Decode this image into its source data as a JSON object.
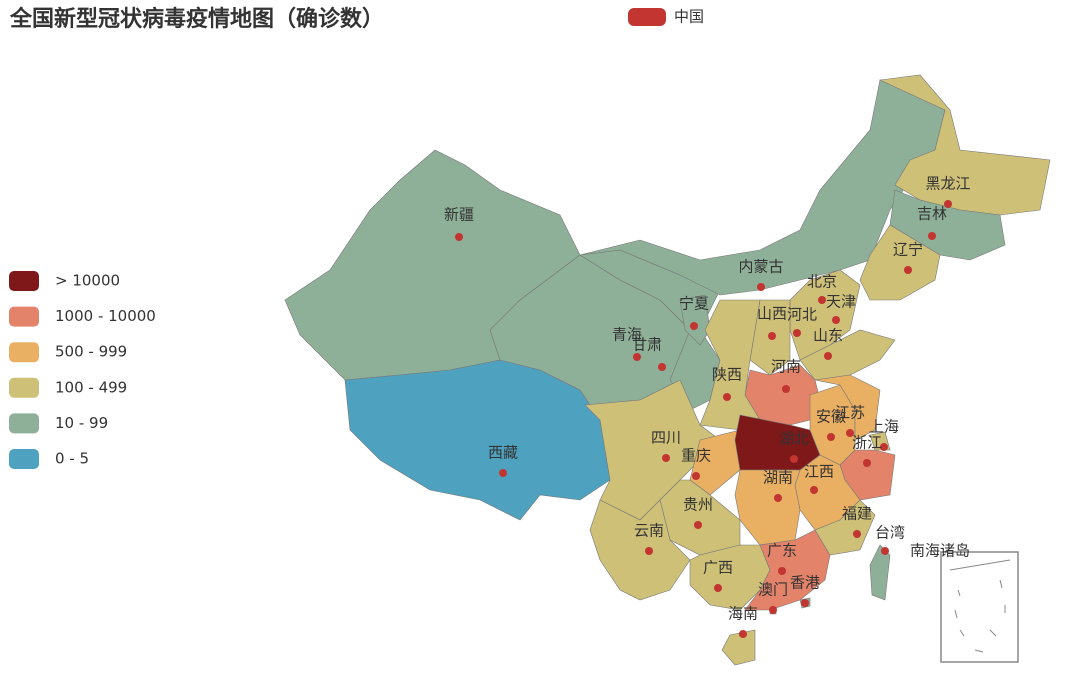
{
  "chart_data": {
    "type": "map",
    "title": "全国新型冠状病毒疫情地图（确诊数）",
    "series": [
      {
        "name": "中国",
        "color": "#c23531"
      }
    ],
    "pieces": [
      {
        "label": "> 10000",
        "color": "#7f1818"
      },
      {
        "label": "1000 - 10000",
        "color": "#e2836a"
      },
      {
        "label": "500 - 999",
        "color": "#e9b063"
      },
      {
        "label": "100 - 499",
        "color": "#cfc078"
      },
      {
        "label": "10 - 99",
        "color": "#8fb098"
      },
      {
        "label": "0 - 5",
        "color": "#4fa2bf"
      }
    ],
    "regions": [
      {
        "name": "新疆",
        "color": "#8fb098"
      },
      {
        "name": "西藏",
        "color": "#4fa2bf"
      },
      {
        "name": "青海",
        "color": "#8fb098"
      },
      {
        "name": "甘肃",
        "color": "#8fb098"
      },
      {
        "name": "宁夏",
        "color": "#8fb098"
      },
      {
        "name": "内蒙古",
        "color": "#8fb098"
      },
      {
        "name": "黑龙江",
        "color": "#cfc078"
      },
      {
        "name": "吉林",
        "color": "#8fb098"
      },
      {
        "name": "辽宁",
        "color": "#cfc078"
      },
      {
        "name": "北京",
        "color": "#cfc078"
      },
      {
        "name": "天津",
        "color": "#cfc078"
      },
      {
        "name": "河北",
        "color": "#cfc078"
      },
      {
        "name": "山西",
        "color": "#cfc078"
      },
      {
        "name": "山东",
        "color": "#cfc078"
      },
      {
        "name": "河南",
        "color": "#e2836a"
      },
      {
        "name": "陕西",
        "color": "#cfc078"
      },
      {
        "name": "四川",
        "color": "#cfc078"
      },
      {
        "name": "重庆",
        "color": "#e9b063"
      },
      {
        "name": "湖北",
        "color": "#7f1818"
      },
      {
        "name": "安徽",
        "color": "#e9b063"
      },
      {
        "name": "江苏",
        "color": "#e9b063"
      },
      {
        "name": "上海",
        "color": "#cfc078"
      },
      {
        "name": "浙江",
        "color": "#e2836a"
      },
      {
        "name": "江西",
        "color": "#e9b063"
      },
      {
        "name": "湖南",
        "color": "#e9b063"
      },
      {
        "name": "贵州",
        "color": "#cfc078"
      },
      {
        "name": "云南",
        "color": "#cfc078"
      },
      {
        "name": "广西",
        "color": "#cfc078"
      },
      {
        "name": "广东",
        "color": "#e2836a"
      },
      {
        "name": "福建",
        "color": "#cfc078"
      },
      {
        "name": "台湾",
        "color": "#8fb098"
      },
      {
        "name": "香港",
        "color": "#8fb098"
      },
      {
        "name": "澳门",
        "color": "#8fb098"
      },
      {
        "name": "海南",
        "color": "#cfc078"
      },
      {
        "name": "南海诸岛"
      }
    ]
  }
}
